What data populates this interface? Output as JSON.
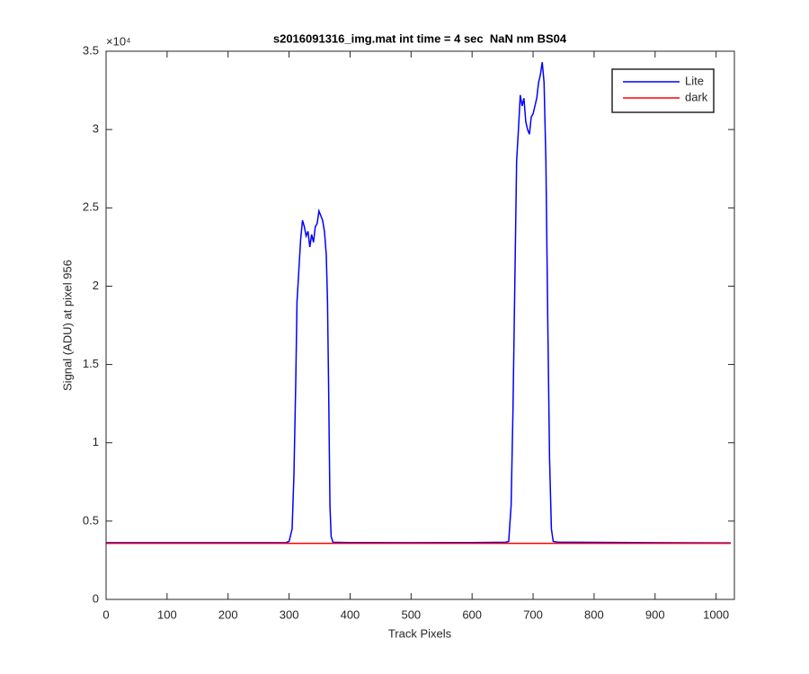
{
  "chart_data": {
    "type": "line",
    "title": "s2016091316_img.mat int time = 4 sec  NaN nm BS04",
    "xlabel": "Track Pixels",
    "ylabel": "Signal (ADU) at pixel 956",
    "y_exponent": "×10⁴",
    "xlim": [
      0,
      1030
    ],
    "ylim": [
      0,
      3.5
    ],
    "xticks": [
      0,
      100,
      200,
      300,
      400,
      500,
      600,
      700,
      800,
      900,
      1000
    ],
    "yticks": [
      0,
      0.5,
      1,
      1.5,
      2,
      2.5,
      3,
      3.5
    ],
    "grid": false,
    "legend_location": "northeast",
    "series": [
      {
        "name": "Lite",
        "color": "#0000ff",
        "x": [
          0,
          100,
          200,
          295,
          300,
          305,
          308,
          311,
          313,
          316,
          319,
          322,
          325,
          328,
          331,
          334,
          337,
          340,
          343,
          346,
          349,
          352,
          355,
          358,
          361,
          363,
          365,
          367,
          369,
          372,
          400,
          500,
          600,
          655,
          660,
          664,
          667,
          670,
          673,
          676,
          679,
          682,
          685,
          688,
          691,
          694,
          697,
          700,
          703,
          706,
          709,
          712,
          715,
          718,
          721,
          724,
          727,
          730,
          733,
          740,
          800,
          900,
          1024
        ],
        "values": [
          0.362,
          0.362,
          0.362,
          0.363,
          0.37,
          0.45,
          0.8,
          1.4,
          1.9,
          2.1,
          2.3,
          2.42,
          2.38,
          2.32,
          2.35,
          2.25,
          2.33,
          2.28,
          2.38,
          2.4,
          2.48,
          2.45,
          2.42,
          2.35,
          2.2,
          1.9,
          1.3,
          0.6,
          0.4,
          0.365,
          0.363,
          0.362,
          0.363,
          0.365,
          0.37,
          0.6,
          1.2,
          2.0,
          2.8,
          3.0,
          3.22,
          3.15,
          3.2,
          3.05,
          3.0,
          2.97,
          3.08,
          3.1,
          3.15,
          3.2,
          3.3,
          3.35,
          3.43,
          3.3,
          2.8,
          1.8,
          0.9,
          0.45,
          0.37,
          0.366,
          0.364,
          0.362,
          0.361
        ]
      },
      {
        "name": "dark",
        "color": "#ff0000",
        "x": [
          0,
          200,
          400,
          600,
          800,
          1024
        ],
        "values": [
          0.358,
          0.358,
          0.358,
          0.358,
          0.358,
          0.358
        ]
      }
    ]
  }
}
